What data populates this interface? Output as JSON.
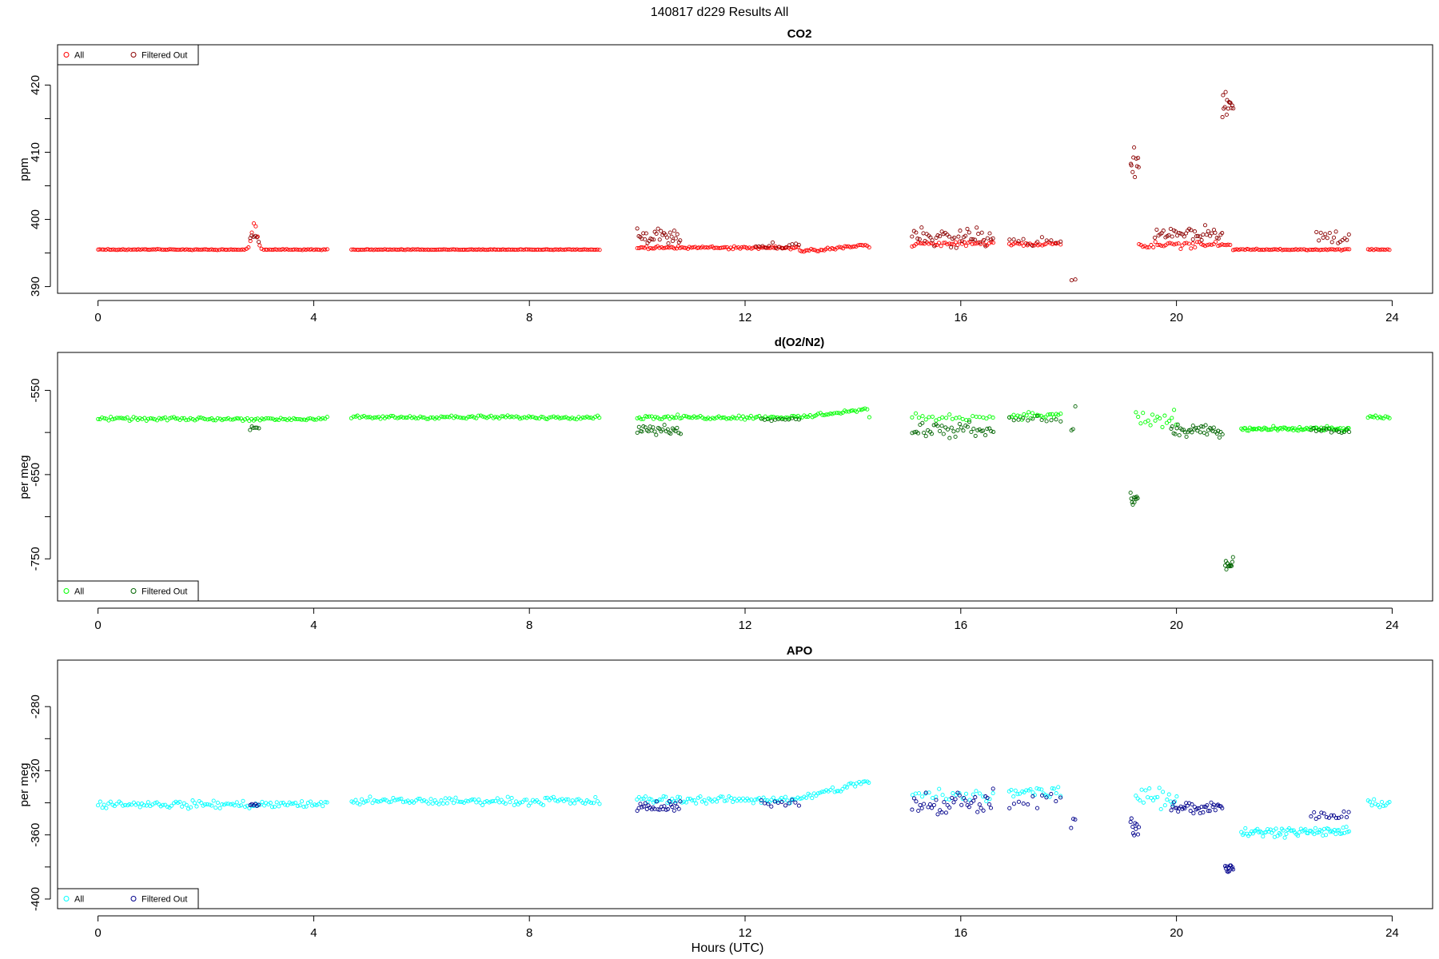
{
  "figure": {
    "title": "140817   d229   Results All"
  },
  "chart_data": [
    {
      "type": "scatter",
      "title": "CO2",
      "xlabel": "",
      "ylabel": "ppm",
      "xlim": [
        -0.75,
        24.75
      ],
      "ylim": [
        389.0,
        426.0
      ],
      "xticks": [
        "0",
        "4",
        "8",
        "12",
        "16",
        "20",
        "24"
      ],
      "yticks": [
        "390",
        "400",
        "410",
        "420"
      ],
      "legend": {
        "placement": "top-left",
        "entries": [
          "All",
          "Filtered Out"
        ]
      },
      "colors": {
        "all": "#ff0000",
        "filtered": "#8b0000"
      },
      "series": [
        {
          "name": "All",
          "segments": [
            {
              "x0": 0.0,
              "x1": 4.25,
              "n": 120,
              "y": 395.5,
              "noise": 0.1,
              "bumps": [
                {
                  "c": 2.9,
                  "w": 0.07,
                  "h": 4.0
                }
              ]
            },
            {
              "x0": 4.7,
              "x1": 9.3,
              "n": 135,
              "y": 395.5,
              "noise": 0.08
            },
            {
              "x0": 10.0,
              "x1": 14.3,
              "n": 125,
              "y": 395.8,
              "noise": 0.3,
              "slope": [
                {
                  "x0": 13.0,
                  "x1": 14.3,
                  "y0": 395.2,
                  "y1": 396.2
                }
              ]
            },
            {
              "x0": 15.1,
              "x1": 16.6,
              "n": 40,
              "y": 396.4,
              "noise": 0.5
            },
            {
              "x0": 16.9,
              "x1": 17.85,
              "n": 26,
              "y": 396.3,
              "noise": 0.4
            },
            {
              "x0": 19.3,
              "x1": 21.0,
              "n": 45,
              "y": 396.2,
              "noise": 0.8
            },
            {
              "x0": 21.05,
              "x1": 23.2,
              "n": 60,
              "y": 395.5,
              "noise": 0.15
            },
            {
              "x0": 23.55,
              "x1": 23.95,
              "n": 12,
              "y": 395.5,
              "noise": 0.15
            }
          ]
        },
        {
          "name": "Filtered Out",
          "segments": [
            {
              "x0": 2.82,
              "x1": 2.98,
              "n": 6,
              "y": 397.2,
              "noise": 1.2
            },
            {
              "x0": 10.0,
              "x1": 10.8,
              "n": 30,
              "y": 397.6,
              "noise": 1.6
            },
            {
              "x0": 12.2,
              "x1": 13.0,
              "n": 14,
              "y": 396.1,
              "noise": 0.6
            },
            {
              "x0": 15.1,
              "x1": 16.6,
              "n": 45,
              "y": 397.5,
              "noise": 2.0
            },
            {
              "x0": 16.9,
              "x1": 17.85,
              "n": 12,
              "y": 396.8,
              "noise": 1.0
            },
            {
              "x0": 18.05,
              "x1": 18.12,
              "n": 2,
              "y": 391.0,
              "noise": 0.4
            },
            {
              "x0": 19.15,
              "x1": 19.3,
              "n": 10,
              "y": 408.5,
              "noise": 3.0
            },
            {
              "x0": 19.6,
              "x1": 20.85,
              "n": 40,
              "y": 398.0,
              "noise": 1.7
            },
            {
              "x0": 20.85,
              "x1": 21.05,
              "n": 14,
              "y": 416.5,
              "noise": 4.5
            },
            {
              "x0": 22.6,
              "x1": 23.2,
              "n": 16,
              "y": 397.5,
              "noise": 1.8
            }
          ]
        }
      ]
    },
    {
      "type": "scatter",
      "title": "d(O2/N2)",
      "xlabel": "",
      "ylabel": "per meg",
      "xlim": [
        -0.75,
        24.75
      ],
      "ylim": [
        -800.0,
        -505.0
      ],
      "xticks": [
        "0",
        "4",
        "8",
        "12",
        "16",
        "20",
        "24"
      ],
      "yticks": [
        "-550",
        "-650",
        "-750"
      ],
      "legend": {
        "placement": "bottom-left",
        "entries": [
          "All",
          "Filtered Out"
        ]
      },
      "colors": {
        "all": "#00ff00",
        "filtered": "#006400"
      },
      "series": [
        {
          "name": "All",
          "segments": [
            {
              "x0": 0.0,
              "x1": 4.25,
              "n": 110,
              "y": -584.0,
              "noise": 3.0
            },
            {
              "x0": 4.7,
              "x1": 9.3,
              "n": 120,
              "y": -582.0,
              "noise": 3.0
            },
            {
              "x0": 10.0,
              "x1": 14.3,
              "n": 115,
              "y": -582.0,
              "noise": 3.5,
              "slope": [
                {
                  "x0": 13.0,
                  "x1": 14.3,
                  "y0": -582.0,
                  "y1": -572.0
                }
              ]
            },
            {
              "x0": 15.1,
              "x1": 16.6,
              "n": 25,
              "y": -582.0,
              "noise": 6.0
            },
            {
              "x0": 16.9,
              "x1": 17.85,
              "n": 25,
              "y": -580.0,
              "noise": 6.0
            },
            {
              "x0": 19.25,
              "x1": 20.0,
              "n": 18,
              "y": -585.0,
              "noise": 18.0
            },
            {
              "x0": 21.2,
              "x1": 23.2,
              "n": 75,
              "y": -596.0,
              "noise": 4.0
            },
            {
              "x0": 23.55,
              "x1": 23.95,
              "n": 12,
              "y": -582.0,
              "noise": 3.0
            }
          ]
        },
        {
          "name": "Filtered Out",
          "segments": [
            {
              "x0": 2.82,
              "x1": 2.98,
              "n": 6,
              "y": -596.0,
              "noise": 5.0
            },
            {
              "x0": 10.0,
              "x1": 10.8,
              "n": 28,
              "y": -597.0,
              "noise": 8.0
            },
            {
              "x0": 12.3,
              "x1": 13.0,
              "n": 12,
              "y": -584.0,
              "noise": 3.0
            },
            {
              "x0": 15.1,
              "x1": 16.6,
              "n": 42,
              "y": -598.0,
              "noise": 14.0
            },
            {
              "x0": 16.9,
              "x1": 17.85,
              "n": 12,
              "y": -585.0,
              "noise": 6.0
            },
            {
              "x0": 18.05,
              "x1": 18.12,
              "n": 3,
              "y": -585.0,
              "noise": 25.0
            },
            {
              "x0": 19.15,
              "x1": 19.28,
              "n": 10,
              "y": -680.0,
              "noise": 18.0
            },
            {
              "x0": 19.9,
              "x1": 20.85,
              "n": 38,
              "y": -598.0,
              "noise": 9.0
            },
            {
              "x0": 20.9,
              "x1": 21.05,
              "n": 12,
              "y": -755.0,
              "noise": 15.0
            },
            {
              "x0": 22.5,
              "x1": 23.2,
              "n": 16,
              "y": -597.0,
              "noise": 5.0
            }
          ]
        }
      ]
    },
    {
      "type": "scatter",
      "title": "APO",
      "xlabel": "Hours (UTC)",
      "ylabel": "per meg",
      "xlim": [
        -0.75,
        24.75
      ],
      "ylim": [
        -406.0,
        -251.0
      ],
      "xticks": [
        "0",
        "4",
        "8",
        "12",
        "16",
        "20",
        "24"
      ],
      "yticks": [
        "-280",
        "-320",
        "-360",
        "-400"
      ],
      "legend": {
        "placement": "bottom-left",
        "entries": [
          "All",
          "Filtered Out"
        ]
      },
      "colors": {
        "all": "#00ffff",
        "filtered": "#00008b"
      },
      "series": [
        {
          "name": "All",
          "segments": [
            {
              "x0": 0.0,
              "x1": 4.25,
              "n": 110,
              "y": -341.0,
              "noise": 3.5
            },
            {
              "x0": 4.7,
              "x1": 9.3,
              "n": 120,
              "y": -339.0,
              "noise": 3.5
            },
            {
              "x0": 10.0,
              "x1": 14.3,
              "n": 115,
              "y": -338.0,
              "noise": 3.5,
              "slope": [
                {
                  "x0": 13.0,
                  "x1": 14.3,
                  "y0": -338.0,
                  "y1": -326.0
                }
              ]
            },
            {
              "x0": 15.1,
              "x1": 16.6,
              "n": 25,
              "y": -336.0,
              "noise": 7.0
            },
            {
              "x0": 16.9,
              "x1": 17.85,
              "n": 25,
              "y": -333.0,
              "noise": 7.0
            },
            {
              "x0": 19.25,
              "x1": 20.0,
              "n": 22,
              "y": -335.0,
              "noise": 14.0
            },
            {
              "x0": 21.2,
              "x1": 23.2,
              "n": 75,
              "y": -358.0,
              "noise": 4.0
            },
            {
              "x0": 23.55,
              "x1": 23.95,
              "n": 12,
              "y": -340.0,
              "noise": 3.5
            }
          ]
        },
        {
          "name": "Filtered Out",
          "segments": [
            {
              "x0": 2.82,
              "x1": 2.98,
              "n": 6,
              "y": -341.0,
              "noise": 3.0
            },
            {
              "x0": 10.0,
              "x1": 10.8,
              "n": 28,
              "y": -343.0,
              "noise": 5.0
            },
            {
              "x0": 12.3,
              "x1": 13.0,
              "n": 12,
              "y": -340.0,
              "noise": 3.0
            },
            {
              "x0": 15.1,
              "x1": 16.6,
              "n": 42,
              "y": -340.0,
              "noise": 10.0
            },
            {
              "x0": 16.9,
              "x1": 17.85,
              "n": 12,
              "y": -338.0,
              "noise": 9.0
            },
            {
              "x0": 18.05,
              "x1": 18.12,
              "n": 3,
              "y": -352.0,
              "noise": 20.0
            },
            {
              "x0": 19.15,
              "x1": 19.3,
              "n": 10,
              "y": -355.0,
              "noise": 8.0
            },
            {
              "x0": 19.9,
              "x1": 20.85,
              "n": 38,
              "y": -343.0,
              "noise": 6.0
            },
            {
              "x0": 20.9,
              "x1": 21.05,
              "n": 12,
              "y": -380.0,
              "noise": 6.0
            },
            {
              "x0": 22.5,
              "x1": 23.2,
              "n": 16,
              "y": -348.0,
              "noise": 4.0
            }
          ]
        }
      ]
    }
  ]
}
